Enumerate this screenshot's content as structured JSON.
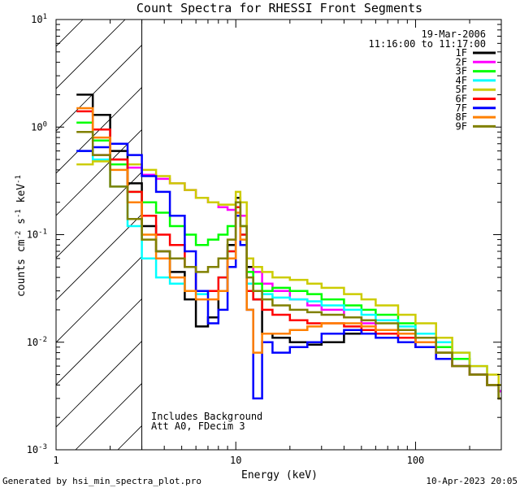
{
  "chart_data": {
    "type": "line",
    "title": "Count Spectra for RHESSI Front Segments",
    "xlabel": "Energy (keV)",
    "ylabel_base": "counts cm",
    "ylabel_exp1": "-2",
    "ylabel_mid": " s",
    "ylabel_exp2": "-1",
    "ylabel_end": " keV",
    "ylabel_exp3": "-1",
    "x_scale": "log",
    "y_scale": "log",
    "xlim": [
      1,
      300
    ],
    "ylim": [
      0.001,
      10
    ],
    "x_ticks": [
      {
        "value": 1,
        "label": "1"
      },
      {
        "value": 10,
        "label": "10"
      },
      {
        "value": 100,
        "label": "100"
      }
    ],
    "y_ticks": [
      {
        "value": 0.001,
        "base": "10",
        "exp": "-3"
      },
      {
        "value": 0.01,
        "base": "10",
        "exp": "-2"
      },
      {
        "value": 0.1,
        "base": "10",
        "exp": "-1"
      },
      {
        "value": 1,
        "base": "10",
        "exp": "0"
      },
      {
        "value": 10,
        "base": "10",
        "exp": "1"
      }
    ],
    "hatched_region": {
      "x_from": 1,
      "x_to": 3
    },
    "date": "19-Mar-2006",
    "time_range": "11:16:00 to 11:17:00",
    "annotations": [
      "Includes Background",
      "Att A0, FDecim 3"
    ],
    "series": [
      {
        "name": "1F",
        "color": "#000000",
        "x": [
          1.3,
          1.6,
          2.0,
          2.5,
          3.0,
          3.6,
          4.3,
          5.2,
          6.0,
          7.0,
          8.0,
          9.0,
          10.0,
          10.6,
          11.5,
          12.5,
          14,
          16,
          20,
          25,
          30,
          40,
          50,
          60,
          80,
          100,
          130,
          160,
          200,
          250,
          290
        ],
        "values": [
          2.0,
          1.3,
          0.6,
          0.3,
          0.12,
          0.07,
          0.045,
          0.025,
          0.014,
          0.017,
          0.03,
          0.08,
          0.22,
          0.15,
          0.05,
          0.025,
          0.012,
          0.011,
          0.01,
          0.0095,
          0.01,
          0.012,
          0.013,
          0.012,
          0.011,
          0.01,
          0.008,
          0.007,
          0.005,
          0.004,
          0.0035
        ]
      },
      {
        "name": "2F",
        "color": "#ff00ff",
        "x": [
          1.3,
          1.6,
          2.0,
          2.5,
          3.0,
          3.6,
          4.3,
          5.2,
          6.0,
          7.0,
          8.0,
          9.0,
          10.0,
          10.6,
          11.5,
          12.5,
          14,
          16,
          20,
          25,
          30,
          40,
          50,
          60,
          80,
          100,
          130,
          160,
          200,
          250,
          290
        ],
        "values": [
          0.6,
          0.55,
          0.5,
          0.42,
          0.36,
          0.33,
          0.3,
          0.26,
          0.22,
          0.2,
          0.18,
          0.17,
          0.2,
          0.15,
          0.06,
          0.045,
          0.035,
          0.03,
          0.025,
          0.022,
          0.02,
          0.017,
          0.015,
          0.013,
          0.011,
          0.009,
          0.007,
          0.006,
          0.005,
          0.004,
          0.0035
        ]
      },
      {
        "name": "3F",
        "color": "#00ff00",
        "x": [
          1.3,
          1.6,
          2.0,
          2.5,
          3.0,
          3.6,
          4.3,
          5.2,
          6.0,
          7.0,
          8.0,
          9.0,
          10.0,
          10.6,
          11.5,
          12.5,
          14,
          16,
          20,
          25,
          30,
          40,
          50,
          60,
          80,
          100,
          130,
          160,
          200,
          250,
          290
        ],
        "values": [
          1.1,
          0.75,
          0.45,
          0.25,
          0.2,
          0.16,
          0.12,
          0.1,
          0.08,
          0.09,
          0.1,
          0.12,
          0.2,
          0.12,
          0.045,
          0.035,
          0.03,
          0.032,
          0.03,
          0.028,
          0.025,
          0.022,
          0.02,
          0.018,
          0.015,
          0.012,
          0.009,
          0.007,
          0.005,
          0.004,
          0.003
        ]
      },
      {
        "name": "4F",
        "color": "#00ffff",
        "x": [
          1.3,
          1.6,
          2.0,
          2.5,
          3.0,
          3.6,
          4.3,
          5.2,
          6.0,
          7.0,
          8.0,
          9.0,
          10.0,
          10.6,
          11.5,
          12.5,
          14,
          16,
          20,
          25,
          30,
          40,
          50,
          60,
          80,
          100,
          130,
          160,
          200,
          250,
          290
        ],
        "values": [
          0.6,
          0.5,
          0.28,
          0.12,
          0.06,
          0.04,
          0.035,
          0.03,
          0.028,
          0.03,
          0.04,
          0.07,
          0.15,
          0.1,
          0.035,
          0.03,
          0.028,
          0.026,
          0.025,
          0.024,
          0.022,
          0.02,
          0.018,
          0.016,
          0.014,
          0.012,
          0.01,
          0.008,
          0.006,
          0.004,
          0.003
        ]
      },
      {
        "name": "5F",
        "color": "#cccc00",
        "x": [
          1.3,
          1.6,
          2.0,
          2.5,
          3.0,
          3.6,
          4.3,
          5.2,
          6.0,
          7.0,
          8.0,
          9.0,
          10.0,
          10.6,
          11.5,
          12.5,
          14,
          16,
          20,
          25,
          30,
          40,
          50,
          60,
          80,
          100,
          130,
          160,
          200,
          250,
          290
        ],
        "values": [
          0.45,
          0.48,
          0.5,
          0.45,
          0.4,
          0.35,
          0.3,
          0.26,
          0.22,
          0.2,
          0.19,
          0.19,
          0.25,
          0.2,
          0.06,
          0.05,
          0.045,
          0.04,
          0.038,
          0.035,
          0.032,
          0.028,
          0.025,
          0.022,
          0.018,
          0.015,
          0.011,
          0.008,
          0.006,
          0.005,
          0.004
        ]
      },
      {
        "name": "6F",
        "color": "#ff0000",
        "x": [
          1.3,
          1.6,
          2.0,
          2.5,
          3.0,
          3.6,
          4.3,
          5.2,
          6.0,
          7.0,
          8.0,
          9.0,
          10.0,
          10.6,
          11.5,
          12.5,
          14,
          16,
          20,
          25,
          30,
          40,
          50,
          60,
          80,
          100,
          130,
          160,
          200,
          250,
          290
        ],
        "values": [
          1.4,
          0.95,
          0.5,
          0.25,
          0.15,
          0.1,
          0.08,
          0.05,
          0.03,
          0.03,
          0.04,
          0.07,
          0.18,
          0.1,
          0.03,
          0.025,
          0.02,
          0.018,
          0.016,
          0.015,
          0.015,
          0.014,
          0.013,
          0.012,
          0.011,
          0.009,
          0.007,
          0.006,
          0.005,
          0.004,
          0.003
        ]
      },
      {
        "name": "7F",
        "color": "#0000ff",
        "x": [
          1.3,
          1.6,
          2.0,
          2.5,
          3.0,
          3.6,
          4.3,
          5.2,
          6.0,
          7.0,
          8.0,
          9.0,
          10.0,
          10.6,
          11.5,
          12.5,
          14,
          16,
          20,
          25,
          30,
          40,
          50,
          60,
          80,
          100,
          130,
          160,
          200,
          250,
          290
        ],
        "values": [
          0.6,
          0.65,
          0.7,
          0.55,
          0.35,
          0.25,
          0.15,
          0.07,
          0.03,
          0.015,
          0.02,
          0.05,
          0.15,
          0.08,
          0.02,
          0.003,
          0.01,
          0.008,
          0.009,
          0.01,
          0.012,
          0.013,
          0.012,
          0.011,
          0.01,
          0.009,
          0.007,
          0.006,
          0.005,
          0.004,
          0.003
        ]
      },
      {
        "name": "8F",
        "color": "#ff8000",
        "x": [
          1.3,
          1.6,
          2.0,
          2.5,
          3.0,
          3.6,
          4.3,
          5.2,
          6.0,
          7.0,
          8.0,
          9.0,
          10.0,
          10.6,
          11.5,
          12.5,
          14,
          16,
          20,
          25,
          30,
          40,
          50,
          60,
          80,
          100,
          130,
          160,
          200,
          250,
          290
        ],
        "values": [
          1.5,
          0.8,
          0.4,
          0.2,
          0.1,
          0.06,
          0.04,
          0.03,
          0.025,
          0.025,
          0.03,
          0.06,
          0.16,
          0.09,
          0.02,
          0.008,
          0.012,
          0.012,
          0.013,
          0.014,
          0.015,
          0.015,
          0.014,
          0.013,
          0.012,
          0.01,
          0.008,
          0.006,
          0.005,
          0.004,
          0.003
        ]
      },
      {
        "name": "9F",
        "color": "#808000",
        "x": [
          1.3,
          1.6,
          2.0,
          2.5,
          3.0,
          3.6,
          4.3,
          5.2,
          6.0,
          7.0,
          8.0,
          9.0,
          10.0,
          10.6,
          11.5,
          12.5,
          14,
          16,
          20,
          25,
          30,
          40,
          50,
          60,
          80,
          100,
          130,
          160,
          200,
          250,
          290
        ],
        "values": [
          0.9,
          0.55,
          0.28,
          0.14,
          0.09,
          0.07,
          0.06,
          0.05,
          0.045,
          0.05,
          0.06,
          0.09,
          0.2,
          0.12,
          0.04,
          0.03,
          0.025,
          0.022,
          0.02,
          0.019,
          0.018,
          0.017,
          0.016,
          0.015,
          0.013,
          0.011,
          0.008,
          0.006,
          0.005,
          0.004,
          0.003
        ]
      }
    ]
  },
  "footer": {
    "generated_by": "Generated by hsi_min_spectra_plot.pro",
    "timestamp": "10-Apr-2023 20:05"
  }
}
